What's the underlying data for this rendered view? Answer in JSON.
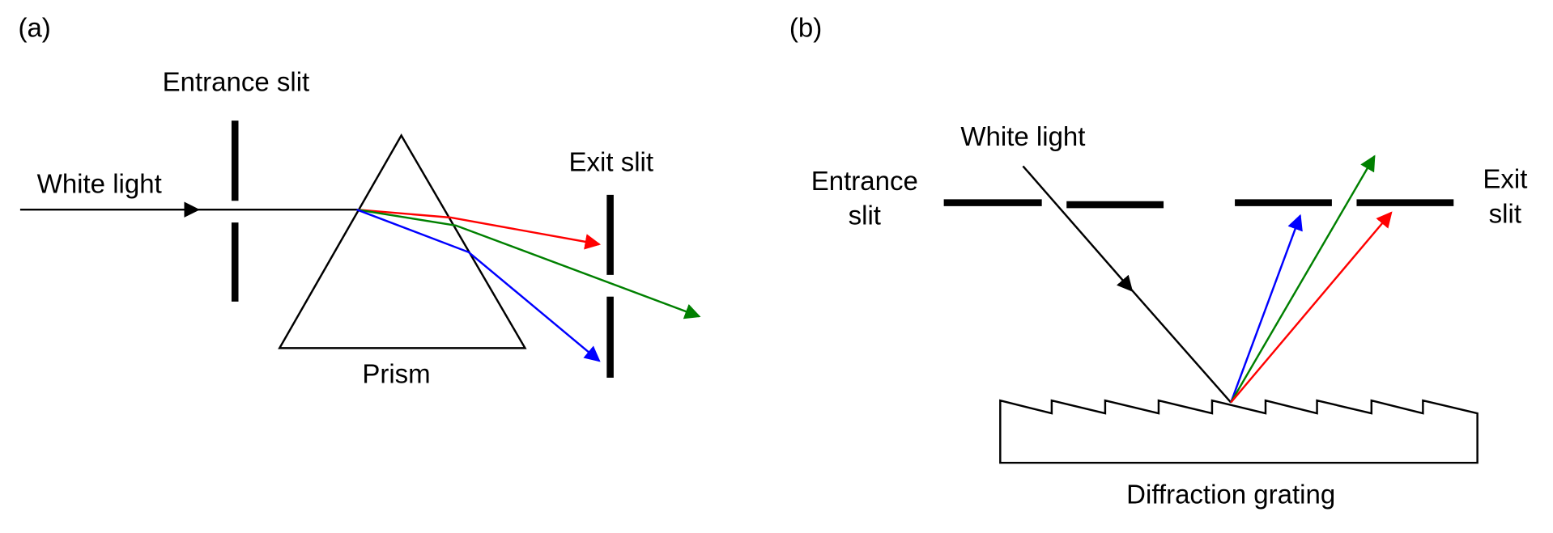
{
  "panel_a": {
    "label": "(a)",
    "entrance_slit": "Entrance slit",
    "white_light": "White light",
    "exit_slit": "Exit slit",
    "prism": "Prism"
  },
  "panel_b": {
    "label": "(b)",
    "white_light": "White light",
    "entrance_slit": [
      "Entrance",
      "slit"
    ],
    "exit_slit": [
      "Exit",
      "slit"
    ],
    "grating": "Diffraction grating"
  }
}
